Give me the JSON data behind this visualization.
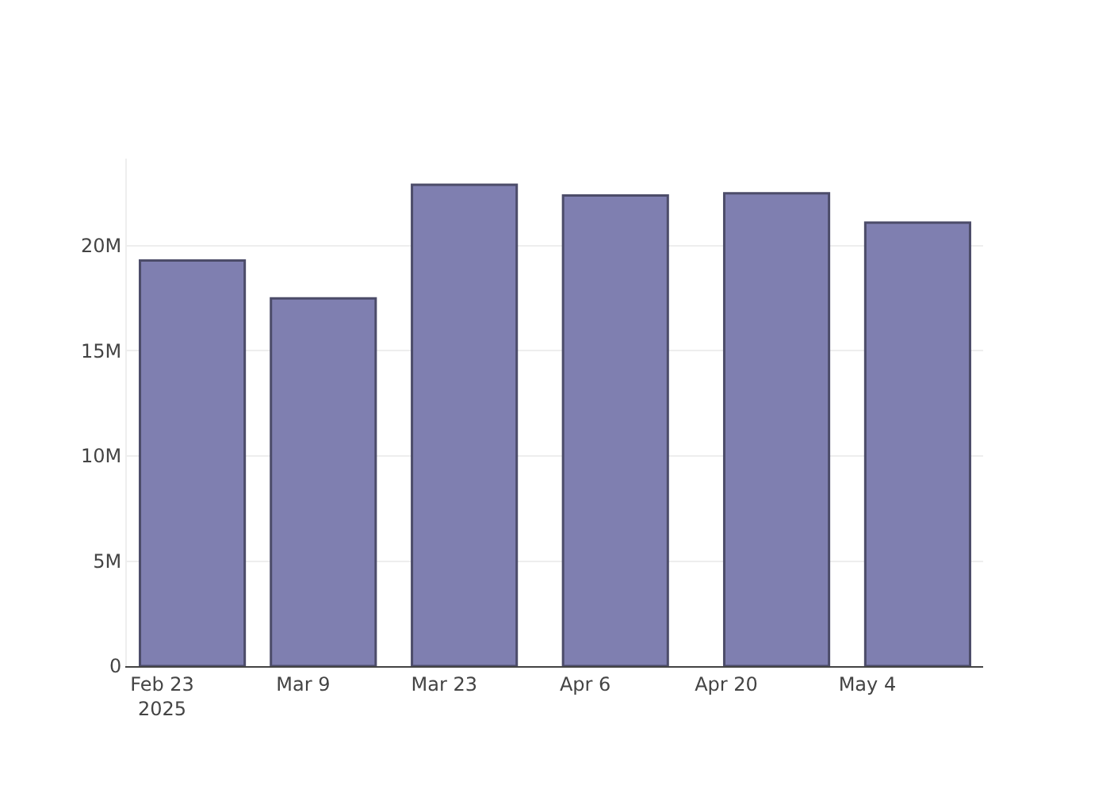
{
  "chart_data": {
    "type": "bar",
    "x": [
      "2025-02-26",
      "2025-03-11",
      "2025-03-25",
      "2025-04-09",
      "2025-04-25",
      "2025-05-09"
    ],
    "series": [
      {
        "color": "#7f7fb0",
        "values": [
          19300000,
          17500000,
          22900000,
          22400000,
          22500000,
          21100000
        ]
      }
    ],
    "xlim": [
      "2025-02-19T12:00",
      "2025-05-15T12:00"
    ],
    "xticks": [
      {
        "value": "2025-02-23",
        "label": "Feb 23\n2025"
      },
      {
        "value": "2025-03-09",
        "label": "Mar 9"
      },
      {
        "value": "2025-03-23",
        "label": "Mar 23"
      },
      {
        "value": "2025-04-06",
        "label": "Apr 6"
      },
      {
        "value": "2025-04-20",
        "label": "Apr 20"
      },
      {
        "value": "2025-05-04",
        "label": "May 4"
      }
    ],
    "ylim": [
      0,
      24150000
    ],
    "yticks": [
      {
        "value": 0,
        "label": "0"
      },
      {
        "value": 5000000,
        "label": "5M"
      },
      {
        "value": 10000000,
        "label": "10M"
      },
      {
        "value": 15000000,
        "label": "15M"
      },
      {
        "value": 20000000,
        "label": "20M"
      }
    ],
    "grid": "y"
  }
}
